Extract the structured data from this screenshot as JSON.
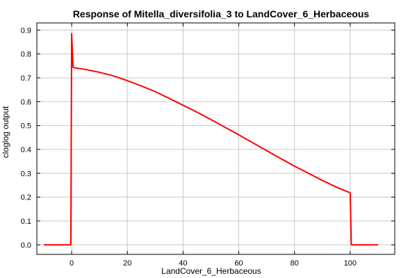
{
  "chart_data": {
    "type": "line",
    "title": "Response of Mitella_diversifolia_3 to LandCover_6_Herbaceous",
    "xlabel": "LandCover_6_Herbaceous",
    "ylabel": "cloglog output",
    "xlim": [
      -12.5,
      116
    ],
    "ylim": [
      -0.04,
      0.93
    ],
    "xticks": [
      0,
      20,
      40,
      60,
      80,
      100
    ],
    "yticks": [
      0.0,
      0.1,
      0.2,
      0.3,
      0.4,
      0.5,
      0.6,
      0.7,
      0.8,
      0.9
    ],
    "grid": true,
    "series": [
      {
        "color": "#ff0000",
        "x": [
          -10,
          -0.3,
          0,
          0.5,
          1,
          5,
          10,
          15,
          20,
          25,
          30,
          35,
          40,
          45,
          50,
          55,
          60,
          65,
          70,
          75,
          80,
          85,
          90,
          95,
          100,
          100.4,
          110
        ],
        "y": [
          0.0,
          0.0,
          0.885,
          0.745,
          0.742,
          0.735,
          0.723,
          0.708,
          0.688,
          0.666,
          0.642,
          0.614,
          0.585,
          0.556,
          0.525,
          0.493,
          0.461,
          0.428,
          0.395,
          0.362,
          0.33,
          0.3,
          0.27,
          0.242,
          0.218,
          0.0,
          0.0
        ]
      }
    ]
  }
}
